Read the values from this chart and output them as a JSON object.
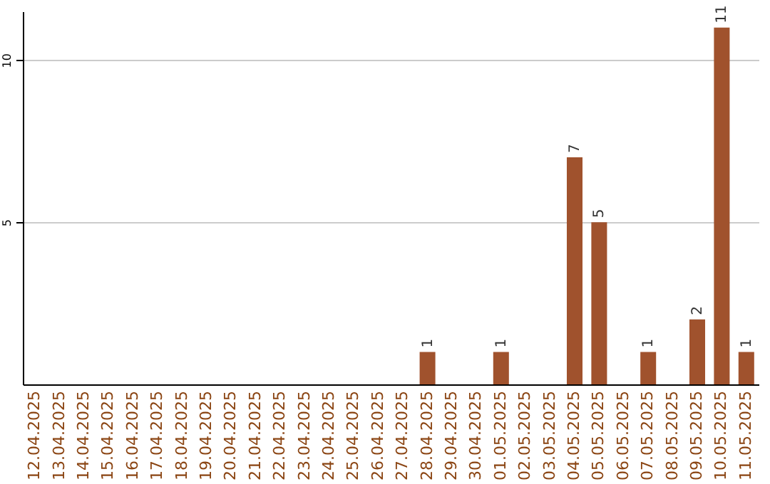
{
  "chart_data": {
    "type": "bar",
    "categories": [
      "12.04.2025",
      "13.04.2025",
      "14.04.2025",
      "15.04.2025",
      "16.04.2025",
      "17.04.2025",
      "18.04.2025",
      "19.04.2025",
      "20.04.2025",
      "21.04.2025",
      "22.04.2025",
      "23.04.2025",
      "24.04.2025",
      "25.04.2025",
      "26.04.2025",
      "27.04.2025",
      "28.04.2025",
      "29.04.2025",
      "30.04.2025",
      "01.05.2025",
      "02.05.2025",
      "03.05.2025",
      "04.05.2025",
      "05.05.2025",
      "06.05.2025",
      "07.05.2025",
      "08.05.2025",
      "09.05.2025",
      "10.05.2025",
      "11.05.2025"
    ],
    "values": [
      0,
      0,
      0,
      0,
      0,
      0,
      0,
      0,
      0,
      0,
      0,
      0,
      0,
      0,
      0,
      0,
      1,
      0,
      0,
      1,
      0,
      0,
      7,
      5,
      0,
      1,
      0,
      2,
      11,
      1
    ],
    "value_labels": [
      null,
      null,
      null,
      null,
      null,
      null,
      null,
      null,
      null,
      null,
      null,
      null,
      null,
      null,
      null,
      null,
      "1",
      null,
      null,
      "1",
      null,
      null,
      "7",
      "5",
      null,
      "1",
      null,
      "2",
      "11",
      "1"
    ],
    "color": "#a0522d",
    "ylim": [
      0,
      11.5
    ],
    "yticks": [
      5,
      10
    ],
    "grid": "y"
  }
}
